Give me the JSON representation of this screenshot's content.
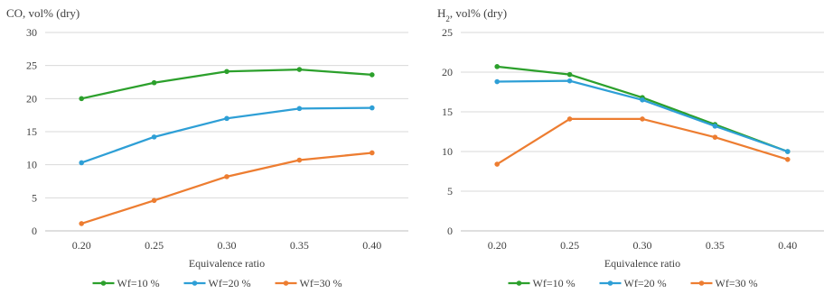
{
  "chart_data": [
    {
      "type": "line",
      "title": "CO, vol% (dry)",
      "xlabel": "Equivalence ratio",
      "ylabel": "",
      "categories": [
        "0.20",
        "0.25",
        "0.30",
        "0.35",
        "0.40"
      ],
      "ylim": [
        0,
        30
      ],
      "yticks": [
        "0",
        "5",
        "10",
        "15",
        "20",
        "25",
        "30"
      ],
      "grid": true,
      "legend": "bottom",
      "series": [
        {
          "name": "Wf=10 %",
          "color": "#2ca02c",
          "values": [
            20.0,
            22.4,
            24.1,
            24.4,
            23.6
          ]
        },
        {
          "name": "Wf=20 %",
          "color": "#2e9fd6",
          "values": [
            10.3,
            14.2,
            17.0,
            18.5,
            18.6
          ]
        },
        {
          "name": "Wf=30 %",
          "color": "#ed7d31",
          "values": [
            1.1,
            4.6,
            8.2,
            10.7,
            11.8
          ]
        }
      ]
    },
    {
      "type": "line",
      "title": "H",
      "title_sub": "2",
      "title_rest": ", vol% (dry)",
      "xlabel": "Equivalence ratio",
      "ylabel": "",
      "categories": [
        "0.20",
        "0.25",
        "0.30",
        "0.35",
        "0.40"
      ],
      "ylim": [
        0,
        25
      ],
      "yticks": [
        "0",
        "5",
        "10",
        "15",
        "20",
        "25"
      ],
      "grid": true,
      "legend": "bottom",
      "series": [
        {
          "name": "Wf=10 %",
          "color": "#2ca02c",
          "values": [
            20.7,
            19.7,
            16.8,
            13.4,
            10.0
          ]
        },
        {
          "name": "Wf=20 %",
          "color": "#2e9fd6",
          "values": [
            18.8,
            18.9,
            16.5,
            13.2,
            10.0
          ]
        },
        {
          "name": "Wf=30 %",
          "color": "#ed7d31",
          "values": [
            8.4,
            14.1,
            14.1,
            11.8,
            9.0
          ]
        }
      ]
    }
  ]
}
